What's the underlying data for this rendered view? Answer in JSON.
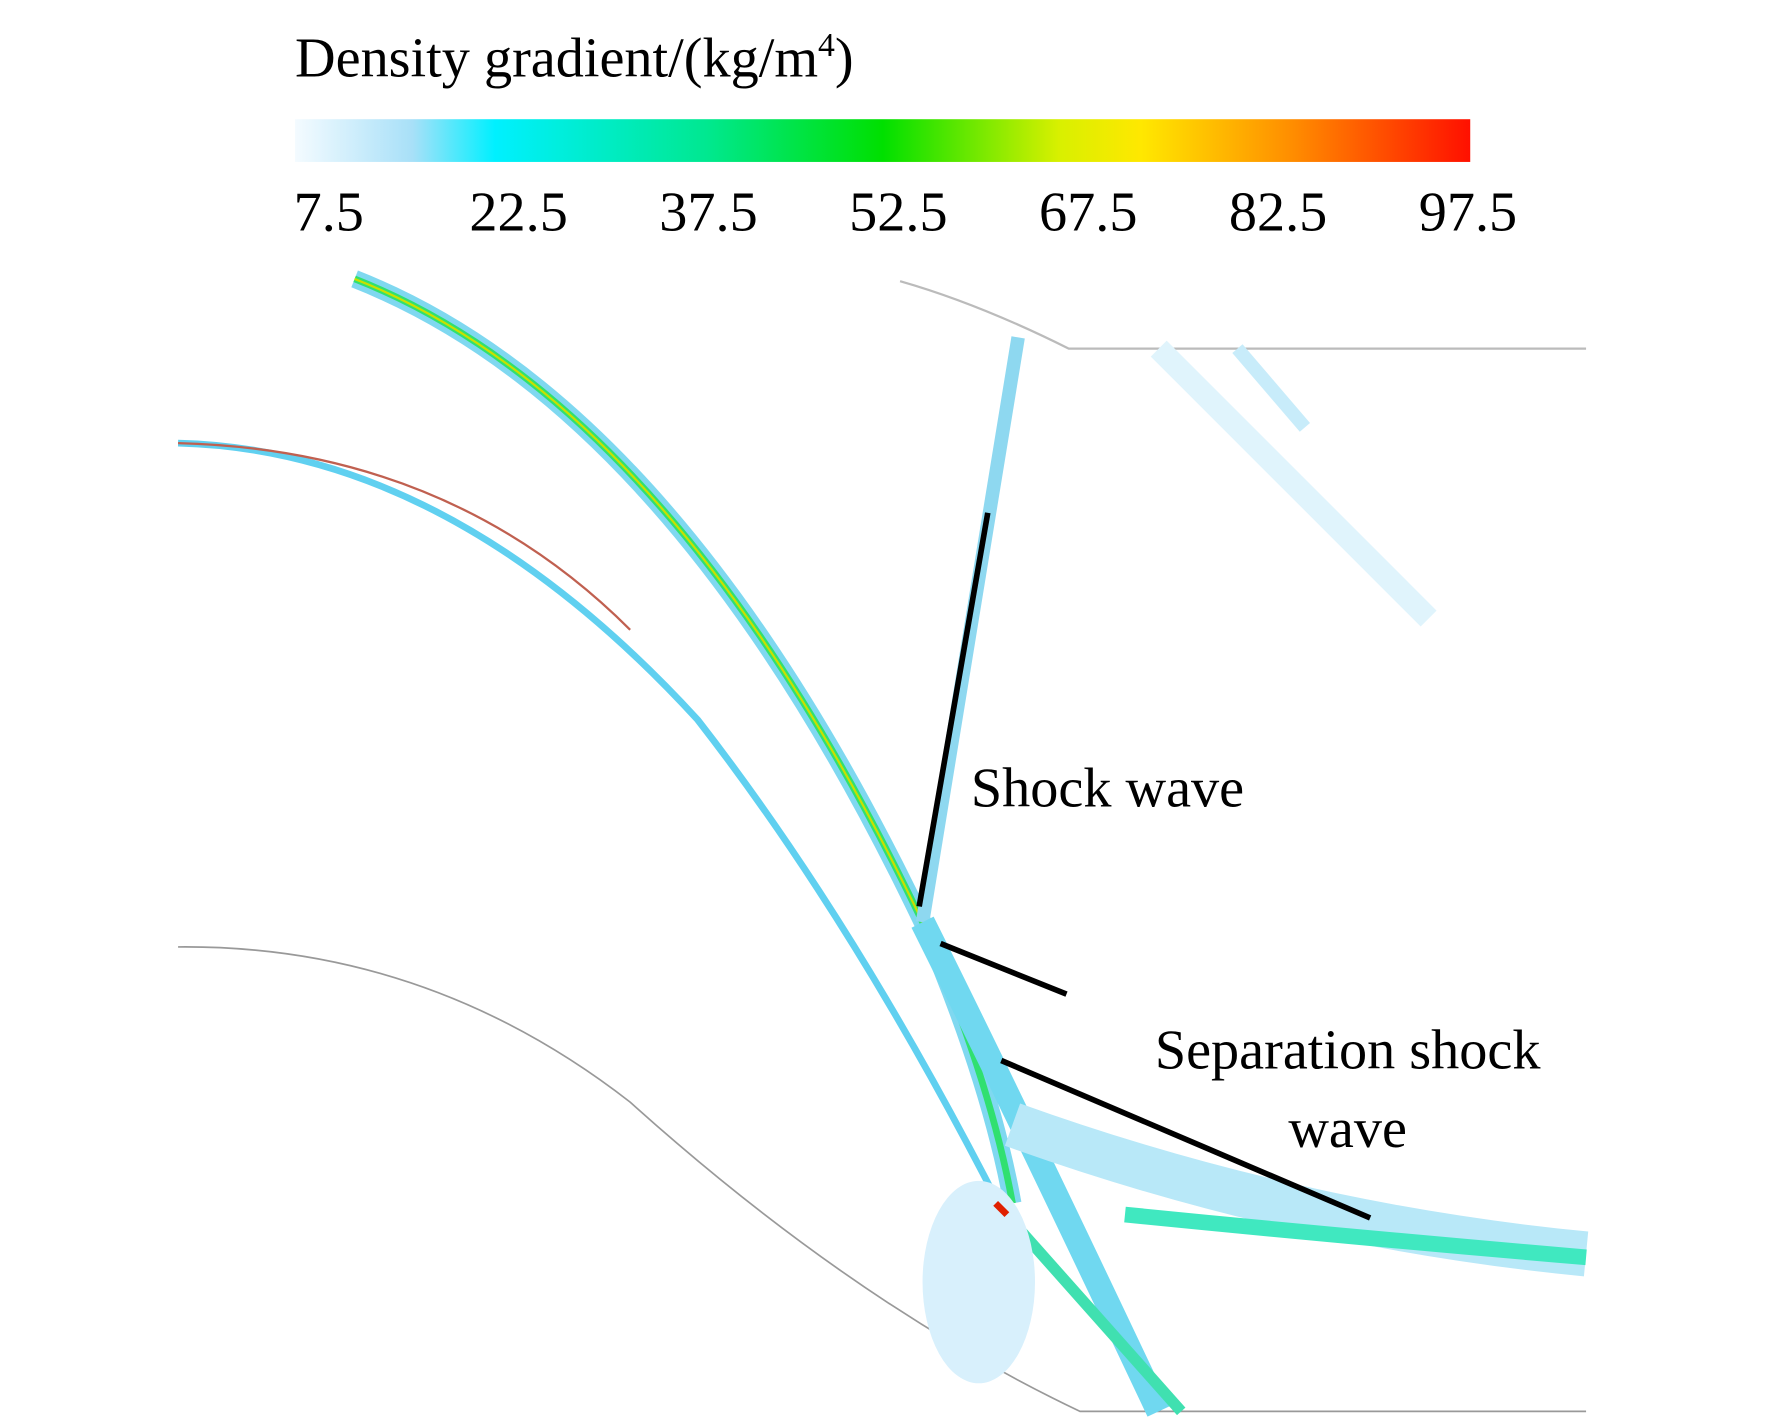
{
  "colorbar": {
    "title": "Density gradient/(kg/m",
    "title_superscript": "4",
    "title_end": ")",
    "ticks": [
      7.5,
      22.5,
      37.5,
      52.5,
      67.5,
      82.5,
      97.5
    ]
  },
  "annotations": {
    "shock": "Shock wave",
    "separation_line1": "Separation shock",
    "separation_line2": "wave"
  }
}
